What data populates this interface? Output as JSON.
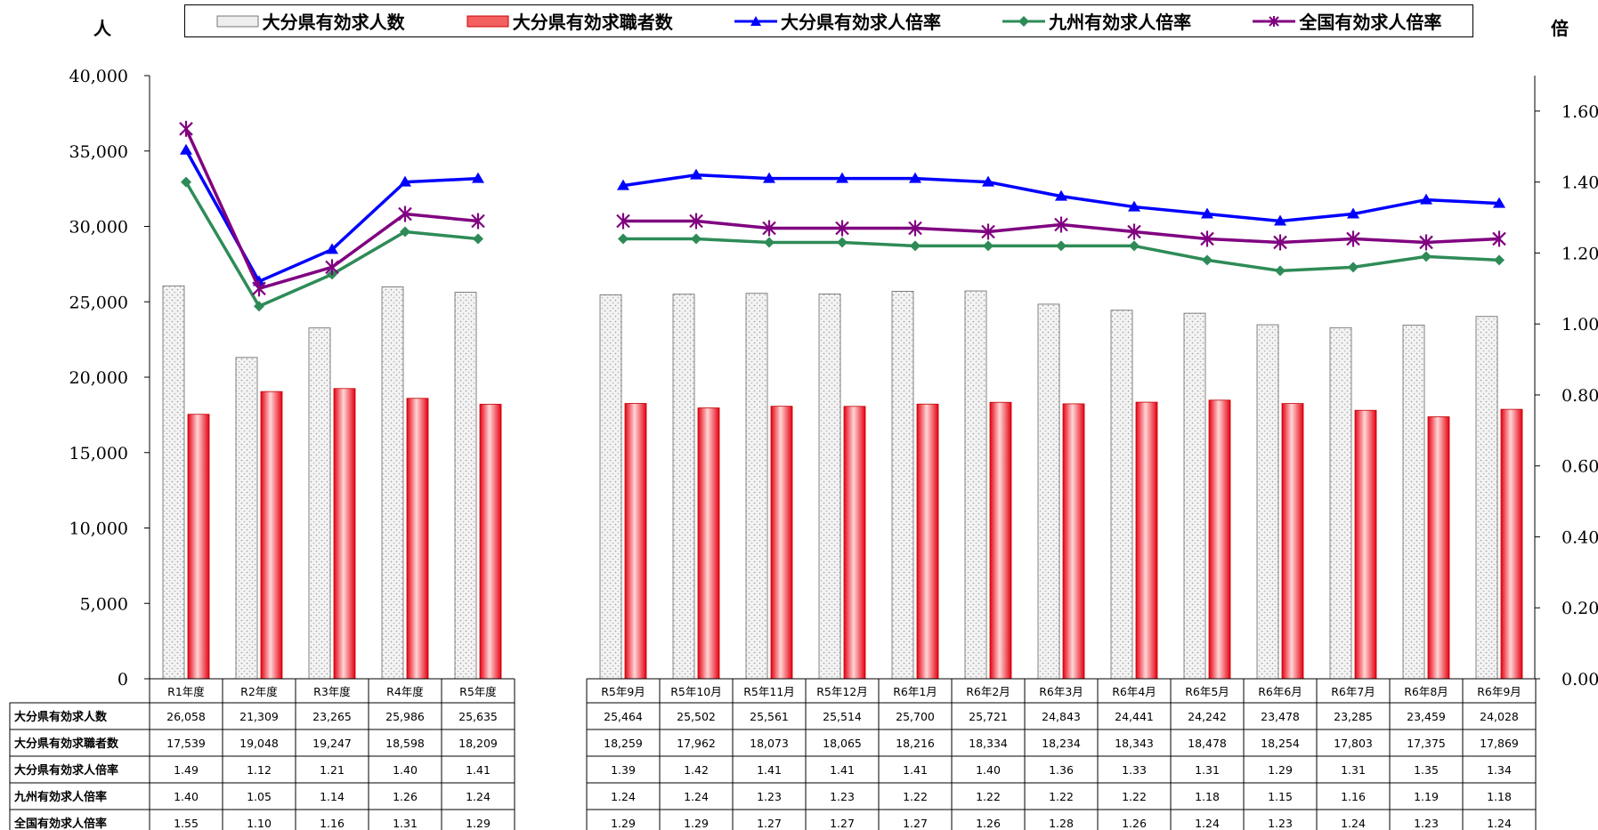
{
  "units": {
    "left": "人",
    "right": "倍"
  },
  "legend": [
    {
      "label": "大分県有効求人数",
      "icon": "dotted-bar-swatch"
    },
    {
      "label": "大分県有効求職者数",
      "icon": "red-bar-swatch"
    },
    {
      "label": "大分県有効求人倍率",
      "icon": "triangle-line-swatch",
      "color": "#0000ff"
    },
    {
      "label": "九州有効求人倍率",
      "icon": "diamond-line-swatch",
      "color": "#2e8b57"
    },
    {
      "label": "全国有効求人倍率",
      "icon": "star-line-swatch",
      "color": "#800080"
    }
  ],
  "chart_data": {
    "type": "bar",
    "categories": [
      "R1年度",
      "R2年度",
      "R3年度",
      "R4年度",
      "R5年度",
      "R5年9月",
      "R5年10月",
      "R5年11月",
      "R5年12月",
      "R6年1月",
      "R6年2月",
      "R6年3月",
      "R6年4月",
      "R6年5月",
      "R6年6月",
      "R6年7月",
      "R6年8月",
      "R6年9月"
    ],
    "y_left": {
      "ticks": [
        "0",
        "5,000",
        "10,000",
        "15,000",
        "20,000",
        "25,000",
        "30,000",
        "35,000",
        "40,000"
      ],
      "range": [
        0,
        40000
      ]
    },
    "y_right": {
      "ticks": [
        "0.00",
        "0.20",
        "0.40",
        "0.60",
        "0.80",
        "1.00",
        "1.20",
        "1.40",
        "1.60"
      ],
      "range": [
        0,
        1.7
      ]
    },
    "series": [
      {
        "name": "大分県有効求人数",
        "kind": "bar",
        "axis": "left",
        "color": "#e0e0e0",
        "values": [
          26058,
          21309,
          23265,
          25986,
          25635,
          25464,
          25502,
          25561,
          25514,
          25700,
          25721,
          24843,
          24441,
          24242,
          23478,
          23285,
          23459,
          24028
        ],
        "labels": [
          "26,058",
          "21,309",
          "23,265",
          "25,986",
          "25,635",
          "25,464",
          "25,502",
          "25,561",
          "25,514",
          "25,700",
          "25,721",
          "24,843",
          "24,441",
          "24,242",
          "23,478",
          "23,285",
          "23,459",
          "24,028"
        ]
      },
      {
        "name": "大分県有効求職者数",
        "kind": "bar",
        "axis": "left",
        "color": "#e60012",
        "values": [
          17539,
          19048,
          19247,
          18598,
          18209,
          18259,
          17962,
          18073,
          18065,
          18216,
          18334,
          18234,
          18343,
          18478,
          18254,
          17803,
          17375,
          17869
        ],
        "labels": [
          "17,539",
          "19,048",
          "19,247",
          "18,598",
          "18,209",
          "18,259",
          "17,962",
          "18,073",
          "18,065",
          "18,216",
          "18,334",
          "18,234",
          "18,343",
          "18,478",
          "18,254",
          "17,803",
          "17,375",
          "17,869"
        ]
      },
      {
        "name": "大分県有効求人倍率",
        "kind": "line",
        "axis": "right",
        "color": "#0000ff",
        "marker": "triangle",
        "values": [
          1.49,
          1.12,
          1.21,
          1.4,
          1.41,
          1.39,
          1.42,
          1.41,
          1.41,
          1.41,
          1.4,
          1.36,
          1.33,
          1.31,
          1.29,
          1.31,
          1.35,
          1.34
        ],
        "labels": [
          "1.49",
          "1.12",
          "1.21",
          "1.40",
          "1.41",
          "1.39",
          "1.42",
          "1.41",
          "1.41",
          "1.41",
          "1.40",
          "1.36",
          "1.33",
          "1.31",
          "1.29",
          "1.31",
          "1.35",
          "1.34"
        ]
      },
      {
        "name": "九州有効求人倍率",
        "kind": "line",
        "axis": "right",
        "color": "#2e8b57",
        "marker": "diamond",
        "values": [
          1.4,
          1.05,
          1.14,
          1.26,
          1.24,
          1.24,
          1.24,
          1.23,
          1.23,
          1.22,
          1.22,
          1.22,
          1.22,
          1.18,
          1.15,
          1.16,
          1.19,
          1.18
        ],
        "labels": [
          "1.40",
          "1.05",
          "1.14",
          "1.26",
          "1.24",
          "1.24",
          "1.24",
          "1.23",
          "1.23",
          "1.22",
          "1.22",
          "1.22",
          "1.22",
          "1.18",
          "1.15",
          "1.16",
          "1.19",
          "1.18"
        ]
      },
      {
        "name": "全国有効求人倍率",
        "kind": "line",
        "axis": "right",
        "color": "#800080",
        "marker": "star",
        "values": [
          1.55,
          1.1,
          1.16,
          1.31,
          1.29,
          1.29,
          1.29,
          1.27,
          1.27,
          1.27,
          1.26,
          1.28,
          1.26,
          1.24,
          1.23,
          1.24,
          1.23,
          1.24
        ],
        "labels": [
          "1.55",
          "1.10",
          "1.16",
          "1.31",
          "1.29",
          "1.29",
          "1.29",
          "1.27",
          "1.27",
          "1.27",
          "1.26",
          "1.28",
          "1.26",
          "1.24",
          "1.23",
          "1.24",
          "1.23",
          "1.24"
        ]
      }
    ],
    "grid": false,
    "legend_position": "top"
  }
}
